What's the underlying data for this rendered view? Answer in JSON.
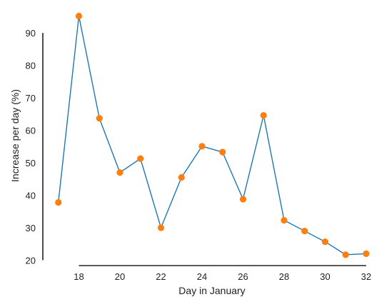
{
  "chart_data": {
    "type": "line",
    "title": "",
    "xlabel": "Day in January",
    "ylabel": "Increase per day (%)",
    "xlim": [
      18,
      32
    ],
    "ylim": [
      20,
      90
    ],
    "xticks": [
      "18",
      "20",
      "22",
      "24",
      "26",
      "28",
      "30",
      "32"
    ],
    "yticks": [
      "20",
      "30",
      "40",
      "50",
      "60",
      "70",
      "80",
      "90"
    ],
    "grid": false,
    "series": [
      {
        "x": [
          17,
          18,
          19,
          20,
          21,
          22,
          23,
          24,
          25,
          26,
          27,
          28,
          29,
          30,
          31,
          32
        ],
        "y": [
          37.8,
          95.2,
          63.7,
          47.0,
          51.3,
          30.0,
          45.5,
          55.1,
          53.3,
          38.8,
          64.6,
          32.3,
          29.0,
          25.7,
          21.7,
          22.0
        ]
      }
    ],
    "colors": {
      "line": "#1f77b4",
      "marker": "#ff7f0e",
      "axis": "#222222"
    }
  }
}
